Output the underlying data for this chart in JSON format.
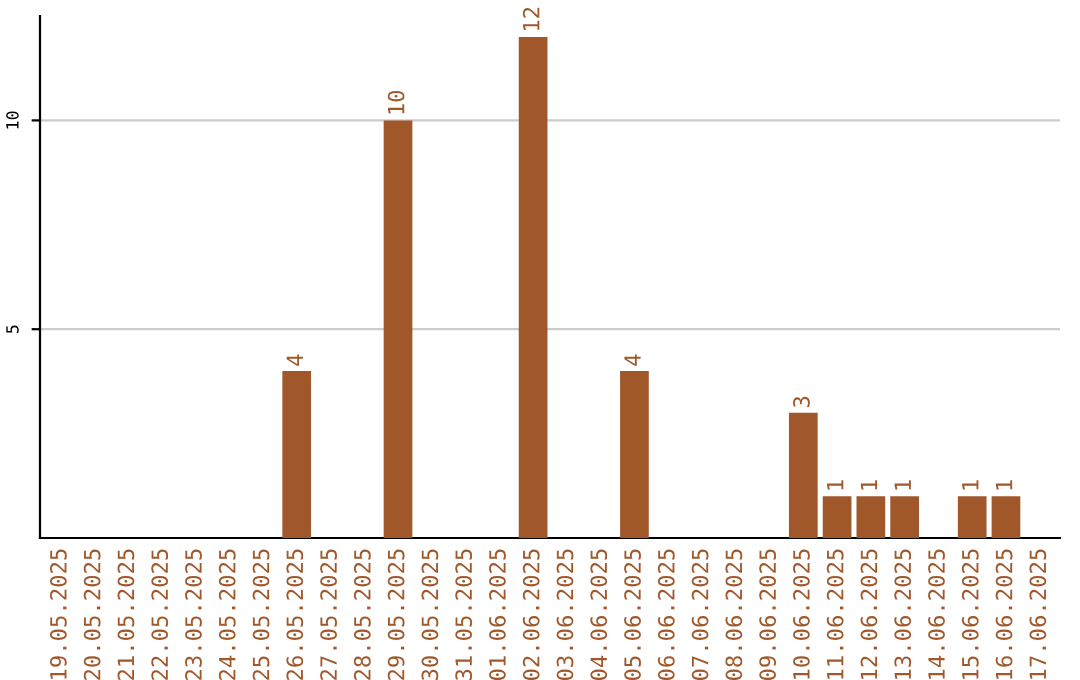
{
  "chart_data": {
    "type": "bar",
    "categories": [
      "19.05.2025",
      "20.05.2025",
      "21.05.2025",
      "22.05.2025",
      "23.05.2025",
      "24.05.2025",
      "25.05.2025",
      "26.05.2025",
      "27.05.2025",
      "28.05.2025",
      "29.05.2025",
      "30.05.2025",
      "31.05.2025",
      "01.06.2025",
      "02.06.2025",
      "03.06.2025",
      "04.06.2025",
      "05.06.2025",
      "06.06.2025",
      "07.06.2025",
      "08.06.2025",
      "09.06.2025",
      "10.06.2025",
      "11.06.2025",
      "12.06.2025",
      "13.06.2025",
      "14.06.2025",
      "15.06.2025",
      "16.06.2025",
      "17.06.2025"
    ],
    "values": [
      0,
      0,
      0,
      0,
      0,
      0,
      0,
      4,
      0,
      0,
      10,
      0,
      0,
      0,
      12,
      0,
      0,
      4,
      0,
      0,
      0,
      0,
      3,
      1,
      1,
      1,
      0,
      1,
      1,
      0
    ],
    "value_labels": [
      null,
      null,
      null,
      null,
      null,
      null,
      null,
      "4",
      null,
      null,
      "10",
      null,
      null,
      null,
      "12",
      null,
      null,
      "4",
      null,
      null,
      null,
      null,
      "3",
      "1",
      "1",
      "1",
      null,
      "1",
      "1",
      null
    ],
    "color": "#a0582b",
    "ylim": [
      0,
      12.5
    ],
    "yticks": [
      5,
      10
    ],
    "grid": "y"
  }
}
